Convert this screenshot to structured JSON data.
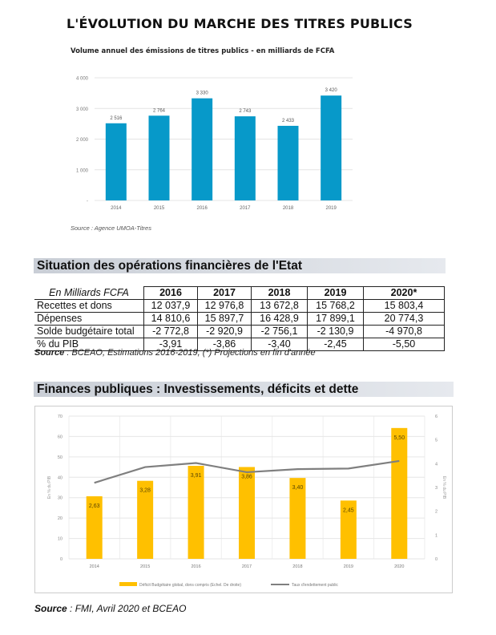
{
  "title": "L'ÉVOLUTION DU MARCHE DES TITRES PUBLICS",
  "chart_data": [
    {
      "type": "bar",
      "title": "Volume annuel des émissions de titres publics - en milliards de FCFA",
      "categories": [
        "2014",
        "2015",
        "2016",
        "2017",
        "2018",
        "2019"
      ],
      "values": [
        2516,
        2764,
        3330,
        2743,
        2433,
        3420
      ],
      "data_labels": [
        "2 516",
        "2 764",
        "3 330",
        "2 743",
        "2 433",
        "3 420"
      ],
      "yticks": [
        "-",
        "1 000",
        "2 000",
        "3 000",
        "4 000"
      ],
      "ylim": [
        0,
        4000
      ],
      "grid": true,
      "color": "#0799c9",
      "source": "Source : Agence UMOA-Titres"
    },
    {
      "type": "bar+line",
      "categories": [
        "2014",
        "2015",
        "2016",
        "2017",
        "2018",
        "2019",
        "2020"
      ],
      "series": [
        {
          "name": "Déficit Budgétaire global, dons compris (Echel. De droite)",
          "axis": "right",
          "type": "bar",
          "values": [
            2.63,
            3.28,
            3.91,
            3.86,
            3.4,
            2.45,
            5.5
          ],
          "data_labels": [
            "2,63",
            "3,28",
            "3,91",
            "3,86",
            "3,40",
            "2,45",
            "5,50"
          ],
          "color": "#ffc000"
        },
        {
          "name": "Taux d'endettement public",
          "axis": "left",
          "type": "line",
          "values": [
            37.3,
            45,
            47,
            42.5,
            44,
            44.3,
            48
          ],
          "color": "#7f7f7f"
        }
      ],
      "left_axis": {
        "label": "En % du PIB",
        "ylim": [
          0,
          70
        ],
        "ticks": [
          "0",
          "10",
          "20",
          "30",
          "40",
          "50",
          "60",
          "70"
        ]
      },
      "right_axis": {
        "label": "En % du PIB",
        "ylim": [
          0,
          6
        ],
        "ticks": [
          "0",
          "1",
          "2",
          "3",
          "4",
          "5",
          "6"
        ]
      },
      "legend": "bottom",
      "grid": true
    }
  ],
  "table_section": {
    "heading": "Situation des opérations financières de l'Etat",
    "corner": "En Milliards FCFA",
    "columns": [
      "2016",
      "2017",
      "2018",
      "2019",
      "2020*"
    ],
    "rows": [
      {
        "label": "Recettes et dons",
        "values": [
          "12 037,9",
          "12 976,8",
          "13 672,8",
          "15 768,2",
          "15 803,4"
        ]
      },
      {
        "label": "Dépenses",
        "values": [
          "14 810,6",
          "15 897,7",
          "16 428,9",
          "17 899,1",
          "20 774,3"
        ]
      },
      {
        "label": "Solde budgétaire total",
        "values": [
          "-2 772,8",
          "-2 920,9",
          "-2 756,1",
          "-2 130,9",
          "-4 970,8"
        ]
      },
      {
        "label": "% du PIB",
        "values": [
          "-3,91",
          "-3,86",
          "-3,40",
          "-2,45",
          "-5,50"
        ]
      }
    ],
    "source_bold": "Source",
    "source_text": " : BCEAO, Estimations 2016-2019, (*) Projections en fin d'année"
  },
  "finances_section": {
    "heading": "Finances publiques : Investissements, déficits et dette",
    "source_bold": "Source",
    "source_text": " : FMI, Avril 2020 et BCEAO"
  }
}
